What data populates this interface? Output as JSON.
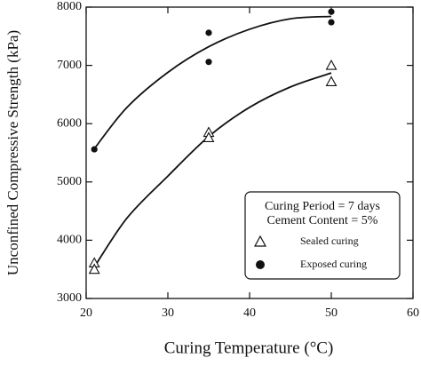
{
  "chart_data": {
    "type": "scatter",
    "x_label": "Curing Temperature (°C)",
    "y_label": "Unconfined Compressive Strength (kPa)",
    "xlim": [
      20,
      60
    ],
    "ylim": [
      3000,
      8000
    ],
    "xticks": [
      20,
      30,
      40,
      50,
      60
    ],
    "yticks": [
      3000,
      4000,
      5000,
      6000,
      7000,
      8000
    ],
    "annotations": [
      "Curing Period = 7 days",
      "Cement Content = 5%"
    ],
    "color": "#111111",
    "series": [
      {
        "name": "Sealed curing",
        "marker": "triangle",
        "x": [
          21,
          21,
          35,
          35,
          50,
          50
        ],
        "values": [
          3610,
          3500,
          5850,
          5760,
          7000,
          6720
        ]
      },
      {
        "name": "Exposed curing",
        "marker": "circle",
        "x": [
          21,
          35,
          35,
          50,
          50
        ],
        "values": [
          5560,
          7560,
          7060,
          7920,
          7740
        ]
      }
    ],
    "fits": [
      {
        "x": [
          21,
          25,
          30,
          35,
          40,
          45,
          50
        ],
        "values": [
          3540,
          4380,
          5100,
          5780,
          6280,
          6630,
          6870
        ]
      },
      {
        "x": [
          21,
          25,
          30,
          35,
          40,
          45,
          50
        ],
        "values": [
          5570,
          6280,
          6880,
          7320,
          7620,
          7800,
          7840
        ]
      }
    ]
  }
}
